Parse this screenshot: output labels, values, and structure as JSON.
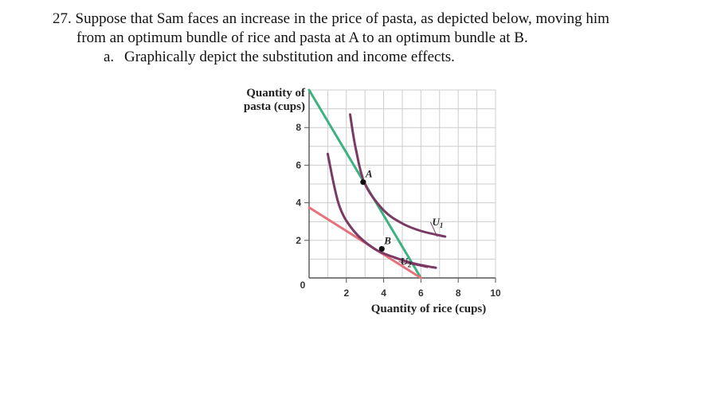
{
  "question": {
    "line1": "27. Suppose that Sam faces an increase in the price of pasta, as depicted below, moving him",
    "line2": "from an optimum bundle of rice and pasta at A to an optimum bundle at B.",
    "part_letter": "a.",
    "part_text": "Graphically depict the substitution and income effects."
  },
  "chart_data": {
    "type": "line",
    "ylabel_line1": "Quantity of",
    "ylabel_line2": "pasta (cups)",
    "xlabel": "Quantity of rice (cups)",
    "xlim": [
      0,
      10
    ],
    "ylim": [
      0,
      10
    ],
    "x_ticks": [
      "2",
      "4",
      "6",
      "8",
      "10"
    ],
    "y_ticks": [
      "2",
      "4",
      "6",
      "8"
    ],
    "origin_label": "0",
    "grid": true,
    "colors": {
      "budget_initial": "#3db27f",
      "budget_new": "#e8707a",
      "indifference": "#7a3a64",
      "grid": "#cccccc",
      "axis": "#555555"
    },
    "budget_lines": [
      {
        "from": [
          0,
          10
        ],
        "to": [
          6,
          0
        ]
      },
      {
        "from": [
          0,
          3.75
        ],
        "to": [
          6,
          0
        ]
      }
    ],
    "indifference_curves": [
      {
        "name": "U",
        "subscript": "1",
        "label_at": [
          6.6,
          2.8
        ],
        "points": [
          [
            2.2,
            8.7
          ],
          [
            2.5,
            6.9
          ],
          [
            3.0,
            5.0
          ],
          [
            4.0,
            3.6
          ],
          [
            5.0,
            2.9
          ],
          [
            6.0,
            2.5
          ],
          [
            7.3,
            2.2
          ]
        ]
      },
      {
        "name": "U",
        "subscript": "2",
        "label_at": [
          4.9,
          0.7
        ],
        "points": [
          [
            1.0,
            6.6
          ],
          [
            1.6,
            3.9
          ],
          [
            2.4,
            2.5
          ],
          [
            3.5,
            1.55
          ],
          [
            4.5,
            1.12
          ],
          [
            5.5,
            0.8
          ],
          [
            6.2,
            0.65
          ],
          [
            6.8,
            0.54
          ]
        ]
      }
    ],
    "points": [
      {
        "label": "A",
        "x": 2.9,
        "y": 5.1
      },
      {
        "label": "B",
        "x": 3.9,
        "y": 1.55
      }
    ]
  }
}
